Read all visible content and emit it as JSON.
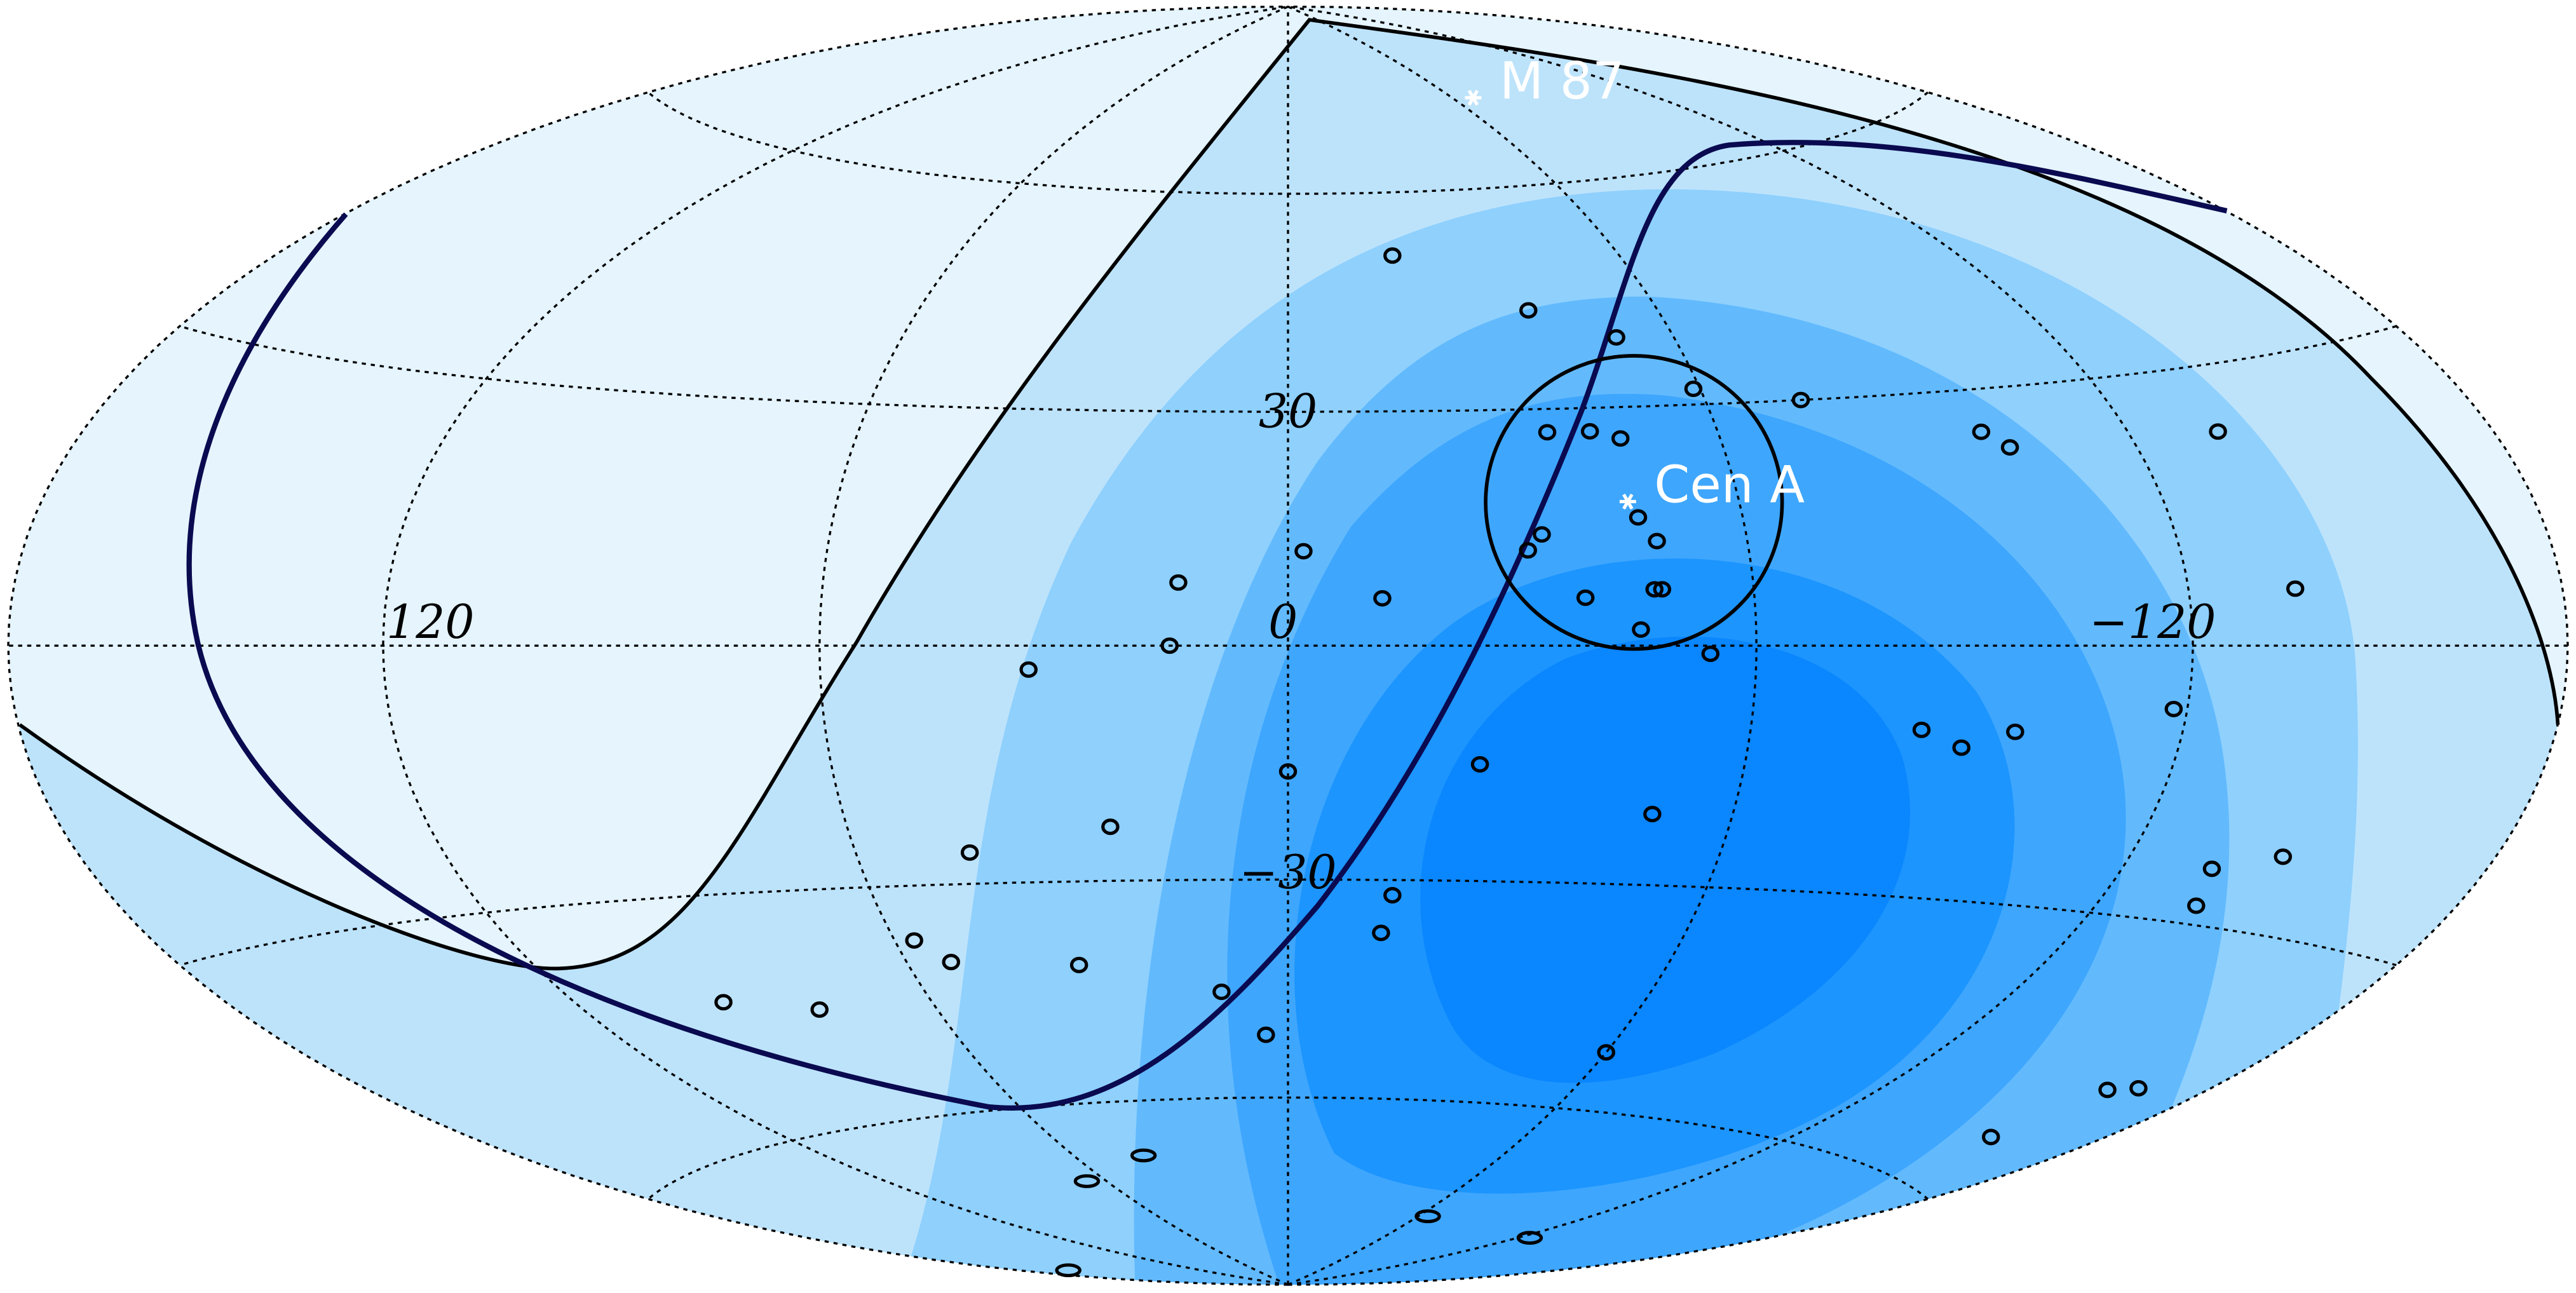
{
  "chart_data": {
    "type": "skymap",
    "projection": "hammer",
    "xticks": [
      120,
      0,
      {
        "value": -120,
        "label": "−120"
      }
    ],
    "yticks": [
      30,
      {
        "value": -30,
        "label": "−30"
      }
    ],
    "lon_grid": [
      -180,
      -120,
      -60,
      0,
      60,
      120,
      180
    ],
    "lat_grid": [
      -60,
      -30,
      0,
      30,
      60
    ],
    "grid": true,
    "events": {
      "color": "#000000",
      "lon": [
        -19,
        -39,
        -51,
        -59,
        -74,
        -36,
        -42,
        -46,
        -98,
        -101,
        -134,
        -46,
        -48,
        -33,
        -31,
        -2,
        14,
        -12,
        -38,
        -47,
        -48,
        -45,
        -54,
        -136,
        15,
        33,
        -83,
        -89,
        -96,
        -118,
        0,
        -25,
        -49,
        24,
        44,
        -134,
        -144,
        -136,
        -15,
        -14,
        57,
        53,
        33,
        11,
        95,
        80,
        4,
        -60,
        -162,
        -167,
        -159,
        41,
        66,
        -64,
        -124,
        170
      ],
      "lat": [
        51,
        43,
        39,
        32,
        30,
        27,
        27,
        26,
        25,
        23,
        23,
        16,
        13,
        14,
        12,
        12,
        8,
        6,
        6,
        7,
        7,
        2,
        -1,
        6,
        0,
        -3,
        -10,
        -12,
        -10,
        -7,
        -16,
        -15,
        -21,
        -23,
        -26,
        -24,
        -22,
        -28,
        -32,
        -37,
        -37,
        -40,
        -41,
        -45,
        -43,
        -45,
        -51,
        -52,
        -47,
        -46,
        -54,
        -68,
        -71,
        -77,
        -77,
        -80
      ]
    },
    "sources": [
      {
        "name": "M 87",
        "lon": -67,
        "lat": 73
      },
      {
        "name": "Cen A",
        "lon": -45,
        "lat": 18
      }
    ]
  }
}
